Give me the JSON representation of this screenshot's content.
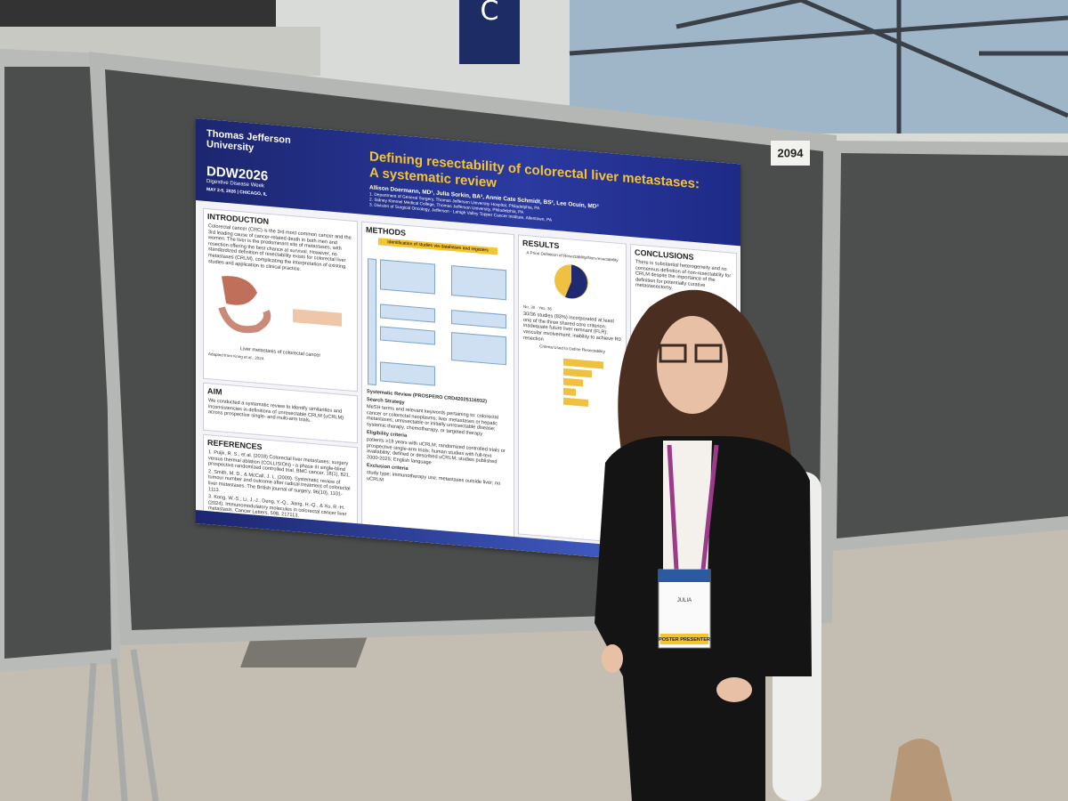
{
  "booth_number": "2094",
  "wall_sign": "C",
  "poster": {
    "institution": "Thomas Jefferson University",
    "conference": "DDW2026",
    "conference_subtitle": "Digestive Disease Week",
    "conference_dates": "MAY 2-5, 2026 | CHICAGO, IL",
    "title_line1": "Defining resectability of colorectal liver metastases:",
    "title_line2": "A systematic review",
    "authors": "Allison Doermann, MD¹, Julia Sorkin, BA², Annie Cate Schmidt, BS², Lee Ocuin, MD³",
    "affiliations": [
      "1. Department of General Surgery, Thomas Jefferson University Hospital, Philadelphia, PA",
      "2. Sidney Kimmel Medical College, Thomas Jefferson University, Philadelphia, PA",
      "3. Division of Surgical Oncology, Jefferson - Lehigh Valley Topper Cancer Institute, Allentown, PA"
    ],
    "introduction": {
      "heading": "INTRODUCTION",
      "text": "Colorectal cancer (CRC) is the 3rd most common cancer and the 3rd leading cause of cancer-related death in both men and women. The liver is the predominant site of metastases, with resection offering the best chance at survival. However, no standardized definition of resectability exists for colorectal liver metastases (CRLM), complicating the interpretation of existing studies and application to clinical practice.",
      "figure_caption": "Liver metastasis of colorectal cancer",
      "figure_credit": "Adapted from Kong et al., 2024."
    },
    "aim": {
      "heading": "AIM",
      "text": "We conducted a systematic review to identify similarities and inconsistencies in definitions of unresectable CRLM (uCRLM) across prospective single- and multi-arm trials."
    },
    "references": {
      "heading": "REFERENCES",
      "items": [
        "1. Puijk, R. S., et al. (2018) Colorectal liver metastases: surgery versus thermal ablation (COLLISION) - a phase III single-blind prospective randomized controlled trial. BMC cancer, 18(1), 821.",
        "2. Smith, M. D., & McCall, J. L. (2009). Systematic review of tumour number and outcome after radical treatment of colorectal liver metastases. The British journal of surgery, 96(10), 1101-1113.",
        "3. Kong, W.-S., Li, J.-J., Deng, Y.-Q., Jiang, H.-Q., & Xu, R.-H. (2024). Immunomodulatory molecules in colorectal cancer liver metastasis. Cancer Letters, 598, 217113."
      ]
    },
    "methods": {
      "heading": "METHODS",
      "flow_title": "Identification of studies via databases and registers",
      "review_heading": "Systematic Review (PROSPERO CRD42025116932)",
      "search_heading": "Search Strategy",
      "search_text": "MeSH terms and relevant keywords pertaining to: colorectal cancer or colorectal neoplasms; liver metastases or hepatic metastases; unresectable or initially unresectable disease; systemic therapy, chemotherapy, or targeted therapy",
      "eligibility_heading": "Eligibility criteria",
      "eligibility_text": "patients ≥18 years with uCRLM; randomized controlled trials or prospective single-arm trials; human studies with full-text availability; defined or described uCRLM; studies published 2000-2025; English language",
      "exclusion_heading": "Exclusion criteria",
      "exclusion_text": "study type; immunotherapy use; metastases outside liver; no uCRLM"
    },
    "results": {
      "heading": "RESULTS",
      "pie_title": "A Priori Definition of Resectability/Non-resectability",
      "pie_no": "No, 30",
      "pie_yes": "Yes, 36",
      "text": "30/36 studies (83%) incorporated at least one of the three shared core criterion: inadequate future liver remnant (FLR); vascular involvement; inability to achieve R0 resection",
      "bar_title": "Criteria Used to Define Resectability"
    },
    "conclusions": {
      "heading": "CONCLUSIONS",
      "text": "There is substantial heterogeneity and no consensus definition of non-resectability for CRLM despite the importance of the definition for potentially curative metastasectomy."
    }
  },
  "badge": {
    "name": "JULIA",
    "role": "POSTER PRESENTER"
  }
}
